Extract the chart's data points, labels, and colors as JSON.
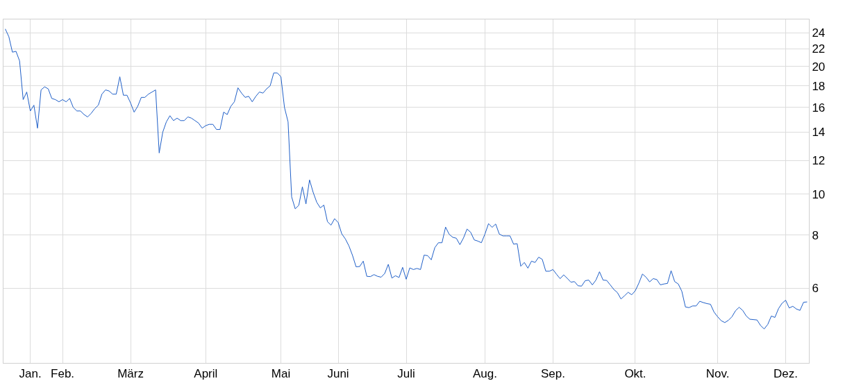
{
  "chart_data": {
    "type": "area",
    "categories": [
      null,
      null,
      null,
      null,
      null,
      null,
      null,
      "Jan.",
      null,
      null,
      null,
      null,
      null,
      null,
      null,
      null,
      "Feb.",
      null,
      null,
      null,
      null,
      null,
      null,
      null,
      null,
      null,
      null,
      null,
      null,
      null,
      null,
      null,
      null,
      null,
      null,
      "März",
      null,
      null,
      null,
      null,
      null,
      null,
      null,
      null,
      null,
      null,
      null,
      null,
      null,
      null,
      null,
      null,
      null,
      null,
      null,
      null,
      "April",
      null,
      null,
      null,
      null,
      null,
      null,
      null,
      null,
      null,
      null,
      null,
      null,
      null,
      null,
      null,
      null,
      null,
      null,
      null,
      null,
      "Mai",
      null,
      null,
      null,
      null,
      null,
      null,
      null,
      null,
      null,
      null,
      null,
      null,
      null,
      null,
      null,
      "Juni",
      null,
      null,
      null,
      null,
      null,
      null,
      null,
      null,
      null,
      null,
      null,
      null,
      null,
      null,
      null,
      null,
      null,
      null,
      "Juli",
      null,
      null,
      null,
      null,
      null,
      null,
      null,
      null,
      null,
      null,
      null,
      null,
      null,
      null,
      null,
      null,
      null,
      null,
      null,
      null,
      null,
      "Aug.",
      null,
      null,
      null,
      null,
      null,
      null,
      null,
      null,
      null,
      null,
      null,
      null,
      null,
      null,
      null,
      null,
      null,
      null,
      "Sep.",
      null,
      null,
      null,
      null,
      null,
      null,
      null,
      null,
      null,
      null,
      null,
      null,
      null,
      null,
      null,
      null,
      null,
      null,
      null,
      null,
      null,
      null,
      "Okt.",
      null,
      null,
      null,
      null,
      null,
      null,
      null,
      null,
      null,
      null,
      null,
      null,
      null,
      null,
      null,
      null,
      null,
      null,
      null,
      null,
      null,
      null,
      "Nov.",
      null,
      null,
      null,
      null,
      null,
      null,
      null,
      null,
      null,
      null,
      null,
      null,
      null,
      null,
      null,
      null,
      null,
      null,
      "Dez.",
      null,
      null,
      null,
      null,
      null,
      null
    ],
    "series": [
      {
        "color": "#1f5fc8",
        "values": [
          24.5,
          23.5,
          21.6,
          21.7,
          20.6,
          16.7,
          17.4,
          15.7,
          16.2,
          14.3,
          17.6,
          17.9,
          17.7,
          16.8,
          16.7,
          16.5,
          16.7,
          16.5,
          16.8,
          16.0,
          15.7,
          15.7,
          15.4,
          15.2,
          15.5,
          15.9,
          16.2,
          17.2,
          17.6,
          17.5,
          17.2,
          17.2,
          18.9,
          17.1,
          17.1,
          16.4,
          15.6,
          16.1,
          16.9,
          16.9,
          17.2,
          17.4,
          17.6,
          12.5,
          14.0,
          14.8,
          15.3,
          14.9,
          15.1,
          14.9,
          14.9,
          15.2,
          15.1,
          14.9,
          14.7,
          14.3,
          14.5,
          14.6,
          14.6,
          14.2,
          14.2,
          15.6,
          15.4,
          16.1,
          16.5,
          17.8,
          17.3,
          16.9,
          17.0,
          16.5,
          17.0,
          17.4,
          17.3,
          17.7,
          18.0,
          19.3,
          19.3,
          18.9,
          16.0,
          14.8,
          9.85,
          9.23,
          9.41,
          10.4,
          9.48,
          10.8,
          10.1,
          9.57,
          9.28,
          9.42,
          8.61,
          8.45,
          8.75,
          8.57,
          8.06,
          7.84,
          7.55,
          7.17,
          6.74,
          6.75,
          6.95,
          6.4,
          6.39,
          6.46,
          6.4,
          6.37,
          6.5,
          6.83,
          6.34,
          6.42,
          6.36,
          6.72,
          6.3,
          6.7,
          6.64,
          6.68,
          6.64,
          7.18,
          7.16,
          7.0,
          7.48,
          7.68,
          7.68,
          8.36,
          8.04,
          7.91,
          7.87,
          7.6,
          7.88,
          8.27,
          8.13,
          7.8,
          7.75,
          7.68,
          8.05,
          8.52,
          8.35,
          8.5,
          8.05,
          7.97,
          7.97,
          7.97,
          7.62,
          7.64,
          6.76,
          6.9,
          6.69,
          6.95,
          6.9,
          7.1,
          7.02,
          6.58,
          6.58,
          6.64,
          6.47,
          6.32,
          6.45,
          6.33,
          6.2,
          6.22,
          6.08,
          6.07,
          6.25,
          6.27,
          6.11,
          6.27,
          6.56,
          6.27,
          6.26,
          6.11,
          5.96,
          5.86,
          5.66,
          5.76,
          5.87,
          5.79,
          5.92,
          6.17,
          6.48,
          6.37,
          6.21,
          6.32,
          6.29,
          6.11,
          6.14,
          6.16,
          6.6,
          6.22,
          6.14,
          5.9,
          5.42,
          5.4,
          5.45,
          5.45,
          5.59,
          5.55,
          5.52,
          5.5,
          5.27,
          5.14,
          5.03,
          4.98,
          5.04,
          5.14,
          5.31,
          5.41,
          5.32,
          5.16,
          5.07,
          5.06,
          5.05,
          4.9,
          4.81,
          4.93,
          5.16,
          5.12,
          5.37,
          5.53,
          5.62,
          5.39,
          5.44,
          5.36,
          5.32,
          5.56,
          5.57
        ]
      }
    ],
    "log": true,
    "ylim": [
      4,
      25.8
    ],
    "yticks": [
      6,
      8,
      10,
      12,
      14,
      16,
      18,
      20,
      22,
      24
    ],
    "grid": true
  }
}
